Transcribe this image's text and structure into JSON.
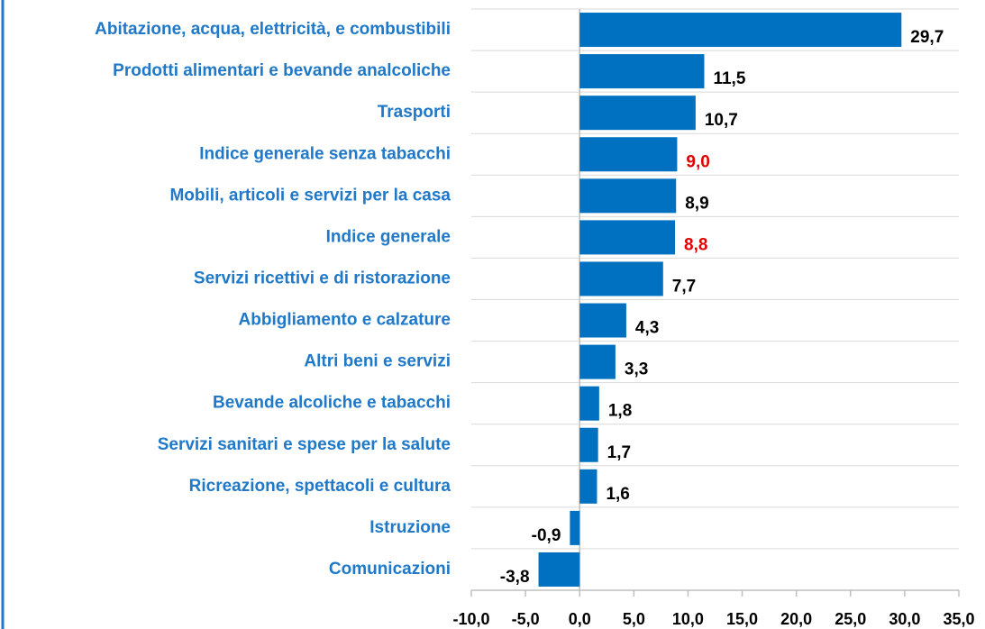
{
  "chart_data": {
    "type": "barh",
    "categories": [
      "Abitazione, acqua, elettricità, e combustibili",
      "Prodotti alimentari e bevande analcoliche",
      "Trasporti",
      "Indice generale senza tabacchi",
      "Mobili, articoli e servizi per la casa",
      "Indice generale",
      "Servizi ricettivi e di ristorazione",
      "Abbigliamento e calzature",
      "Altri beni e servizi",
      "Bevande alcoliche e tabacchi",
      "Servizi sanitari e spese per la salute",
      "Ricreazione, spettacoli e cultura",
      "Istruzione",
      "Comunicazioni"
    ],
    "values": [
      29.7,
      11.5,
      10.7,
      9.0,
      8.9,
      8.8,
      7.7,
      4.3,
      3.3,
      1.8,
      1.7,
      1.6,
      -0.9,
      -3.8
    ],
    "value_labels": [
      "29,7",
      "11,5",
      "10,7",
      "9,0",
      "8,9",
      "8,8",
      "7,7",
      "4,3",
      "3,3",
      "1,8",
      "1,7",
      "1,6",
      "-0,9",
      "-3,8"
    ],
    "value_label_colors": [
      "#000000",
      "#000000",
      "#000000",
      "#e00000",
      "#000000",
      "#e00000",
      "#000000",
      "#000000",
      "#000000",
      "#000000",
      "#000000",
      "#000000",
      "#000000",
      "#000000"
    ],
    "color": "#0070c0",
    "xlim": [
      -10,
      35
    ],
    "xticks": [
      {
        "value": -10,
        "label": "-10,0"
      },
      {
        "value": -5,
        "label": "-5,0"
      },
      {
        "value": 0,
        "label": "0,0"
      },
      {
        "value": 5,
        "label": "5,0"
      },
      {
        "value": 10,
        "label": "10,0"
      },
      {
        "value": 15,
        "label": "15,0"
      },
      {
        "value": 20,
        "label": "20,0"
      },
      {
        "value": 25,
        "label": "25,0"
      },
      {
        "value": 30,
        "label": "30,0"
      },
      {
        "value": 35,
        "label": "35,0"
      }
    ]
  }
}
